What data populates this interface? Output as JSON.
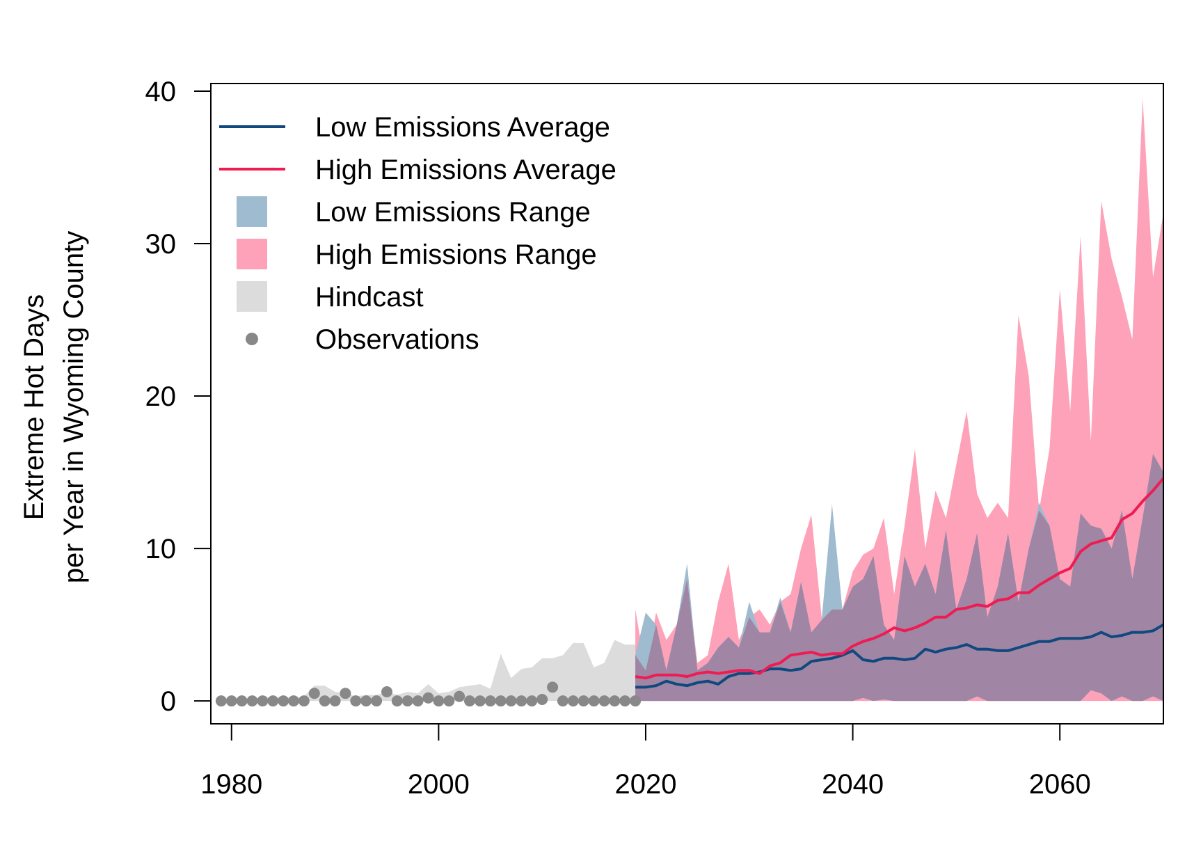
{
  "chart_data": {
    "type": "line",
    "xlabel": "",
    "ylabel_lines": [
      "Extreme Hot Days",
      "per Year in Wyoming County"
    ],
    "xlim": [
      1978,
      2070
    ],
    "ylim": [
      -1.5,
      40.5
    ],
    "xticks": [
      1980,
      2000,
      2020,
      2040,
      2060
    ],
    "yticks": [
      0,
      10,
      20,
      30,
      40
    ],
    "grid": false,
    "legend_position": "top-left",
    "colors": {
      "low_avg": "#11497f",
      "high_avg": "#ee1c53",
      "low_range": "#9fbbd0",
      "high_range": "#fda2b9",
      "overlap": "#a086a4",
      "hindcast": "#dcdcdc",
      "observations": "#888888"
    },
    "legend": [
      {
        "label": "Low Emissions Average",
        "kind": "line",
        "color_key": "low_avg"
      },
      {
        "label": "High Emissions Average",
        "kind": "line",
        "color_key": "high_avg"
      },
      {
        "label": "Low Emissions Range",
        "kind": "box",
        "color_key": "low_range"
      },
      {
        "label": "High Emissions Range",
        "kind": "box",
        "color_key": "high_range"
      },
      {
        "label": "Hindcast",
        "kind": "box",
        "color_key": "hindcast"
      },
      {
        "label": "Observations",
        "kind": "point",
        "color_key": "observations"
      }
    ],
    "observations": {
      "name": "Observations",
      "x": [
        1979,
        1980,
        1981,
        1982,
        1983,
        1984,
        1985,
        1986,
        1987,
        1988,
        1989,
        1990,
        1991,
        1992,
        1993,
        1994,
        1995,
        1996,
        1997,
        1998,
        1999,
        2000,
        2001,
        2002,
        2003,
        2004,
        2005,
        2006,
        2007,
        2008,
        2009,
        2010,
        2011,
        2012,
        2013,
        2014,
        2015,
        2016,
        2017,
        2018,
        2019
      ],
      "y": [
        0,
        0,
        0,
        0,
        0,
        0,
        0,
        0,
        0,
        0.5,
        0,
        0,
        0.5,
        0,
        0,
        0,
        0.6,
        0,
        0,
        0,
        0.2,
        0,
        0,
        0.3,
        0,
        0,
        0,
        0,
        0,
        0,
        0,
        0.1,
        0.9,
        0,
        0,
        0,
        0,
        0,
        0,
        0,
        0
      ]
    },
    "hindcast": {
      "name": "Hindcast",
      "x": [
        1979,
        1980,
        1981,
        1982,
        1983,
        1984,
        1985,
        1986,
        1987,
        1988,
        1989,
        1990,
        1991,
        1992,
        1993,
        1994,
        1995,
        1996,
        1997,
        1998,
        1999,
        2000,
        2001,
        2002,
        2003,
        2004,
        2005,
        2006,
        2007,
        2008,
        2009,
        2010,
        2011,
        2012,
        2013,
        2014,
        2015,
        2016,
        2017,
        2018,
        2019
      ],
      "upper": [
        0.1,
        0.2,
        0.1,
        0.1,
        0.3,
        0.2,
        0.3,
        0.2,
        0.3,
        1.0,
        1.0,
        0.6,
        0.5,
        0.3,
        0.4,
        0.4,
        0.6,
        0.4,
        0.6,
        0.5,
        1.1,
        0.5,
        0.6,
        0.9,
        1.0,
        1.1,
        0.8,
        3.1,
        1.5,
        2.1,
        2.2,
        2.8,
        2.8,
        3.0,
        3.8,
        3.8,
        2.2,
        2.5,
        4.0,
        3.7,
        3.7
      ]
    },
    "low_range": {
      "name": "Low Emissions Range",
      "x": [
        2019,
        2020,
        2021,
        2022,
        2023,
        2024,
        2025,
        2026,
        2027,
        2028,
        2029,
        2030,
        2031,
        2032,
        2033,
        2034,
        2035,
        2036,
        2037,
        2038,
        2039,
        2040,
        2041,
        2042,
        2043,
        2044,
        2045,
        2046,
        2047,
        2048,
        2049,
        2050,
        2051,
        2052,
        2053,
        2054,
        2055,
        2056,
        2057,
        2058,
        2059,
        2060,
        2061,
        2062,
        2063,
        2064,
        2065,
        2066,
        2067,
        2068,
        2069,
        2070
      ],
      "lower": [
        0,
        0,
        0,
        0,
        0,
        0,
        0,
        0,
        0,
        0,
        0,
        0,
        0,
        0,
        0,
        0,
        0,
        0,
        0,
        0,
        0,
        0,
        0.2,
        0,
        0.1,
        0,
        0,
        0,
        0,
        0,
        0,
        0,
        0,
        0.3,
        0,
        0,
        0,
        0,
        0,
        0,
        0,
        0,
        0,
        0,
        0.7,
        0.5,
        0,
        0.3,
        0,
        0,
        0.3,
        0
      ],
      "upper": [
        3.0,
        5.8,
        5.0,
        2.0,
        5.0,
        9.0,
        2.0,
        2.5,
        3.5,
        4.2,
        3.5,
        6.5,
        4.5,
        4.5,
        6.8,
        4.5,
        7.8,
        4.5,
        5.3,
        12.9,
        6.0,
        7.5,
        8.0,
        9.5,
        5.0,
        4.0,
        9.5,
        7.5,
        9.0,
        7.0,
        11.2,
        6.0,
        8.0,
        11.0,
        5.5,
        7.5,
        11.0,
        6.5,
        10.0,
        13.0,
        11.5,
        8.0,
        7.5,
        12.3,
        11.5,
        11.3,
        10.0,
        12.5,
        8.0,
        12.0,
        16.2,
        15.0
      ]
    },
    "high_range": {
      "name": "High Emissions Range",
      "x": [
        2019,
        2020,
        2021,
        2022,
        2023,
        2024,
        2025,
        2026,
        2027,
        2028,
        2029,
        2030,
        2031,
        2032,
        2033,
        2034,
        2035,
        2036,
        2037,
        2038,
        2039,
        2040,
        2041,
        2042,
        2043,
        2044,
        2045,
        2046,
        2047,
        2048,
        2049,
        2050,
        2051,
        2052,
        2053,
        2054,
        2055,
        2056,
        2057,
        2058,
        2059,
        2060,
        2061,
        2062,
        2063,
        2064,
        2065,
        2066,
        2067,
        2068,
        2069,
        2070
      ],
      "lower": [
        0,
        0,
        0,
        0,
        0,
        0,
        0,
        0,
        0,
        0,
        0,
        0,
        0,
        0,
        0,
        0,
        0,
        0,
        0,
        0,
        0,
        0,
        0,
        0,
        0,
        0,
        0,
        0,
        0,
        0,
        0,
        0,
        0,
        0,
        0,
        0,
        0,
        0,
        0,
        0,
        0,
        0,
        0,
        0,
        0,
        0,
        0,
        0,
        0,
        0,
        0,
        0
      ],
      "upper": [
        6.0,
        2.0,
        5.8,
        4.0,
        5.0,
        8.0,
        2.5,
        3.0,
        6.5,
        9.0,
        4.0,
        5.5,
        6.0,
        5.0,
        6.5,
        7.0,
        10.0,
        12.2,
        5.5,
        6.0,
        6.0,
        8.5,
        9.6,
        10.0,
        12.0,
        7.0,
        11.5,
        16.5,
        10.0,
        13.8,
        12.0,
        15.5,
        19.0,
        13.6,
        12.0,
        13.0,
        12.0,
        25.3,
        21.3,
        12.5,
        16.5,
        27.0,
        19.0,
        30.5,
        17.0,
        32.8,
        29.0,
        26.5,
        23.7,
        39.5,
        27.8,
        32.0
      ]
    },
    "low_avg": {
      "name": "Low Emissions Average",
      "x": [
        2019,
        2020,
        2021,
        2022,
        2023,
        2024,
        2025,
        2026,
        2027,
        2028,
        2029,
        2030,
        2031,
        2032,
        2033,
        2034,
        2035,
        2036,
        2037,
        2038,
        2039,
        2040,
        2041,
        2042,
        2043,
        2044,
        2045,
        2046,
        2047,
        2048,
        2049,
        2050,
        2051,
        2052,
        2053,
        2054,
        2055,
        2056,
        2057,
        2058,
        2059,
        2060,
        2061,
        2062,
        2063,
        2064,
        2065,
        2066,
        2067,
        2068,
        2069,
        2070
      ],
      "y": [
        0.9,
        0.9,
        1.0,
        1.3,
        1.1,
        1.0,
        1.2,
        1.3,
        1.1,
        1.6,
        1.8,
        1.8,
        1.9,
        2.1,
        2.1,
        2.0,
        2.1,
        2.6,
        2.7,
        2.8,
        3.0,
        3.3,
        2.7,
        2.6,
        2.8,
        2.8,
        2.7,
        2.8,
        3.4,
        3.2,
        3.4,
        3.5,
        3.7,
        3.4,
        3.4,
        3.3,
        3.3,
        3.5,
        3.7,
        3.9,
        3.9,
        4.1,
        4.1,
        4.1,
        4.2,
        4.5,
        4.2,
        4.3,
        4.5,
        4.5,
        4.6,
        5.0
      ]
    },
    "high_avg": {
      "name": "High Emissions Average",
      "x": [
        2019,
        2020,
        2021,
        2022,
        2023,
        2024,
        2025,
        2026,
        2027,
        2028,
        2029,
        2030,
        2031,
        2032,
        2033,
        2034,
        2035,
        2036,
        2037,
        2038,
        2039,
        2040,
        2041,
        2042,
        2043,
        2044,
        2045,
        2046,
        2047,
        2048,
        2049,
        2050,
        2051,
        2052,
        2053,
        2054,
        2055,
        2056,
        2057,
        2058,
        2059,
        2060,
        2061,
        2062,
        2063,
        2064,
        2065,
        2066,
        2067,
        2068,
        2069,
        2070
      ],
      "y": [
        1.6,
        1.5,
        1.7,
        1.7,
        1.7,
        1.6,
        1.8,
        1.9,
        1.8,
        1.9,
        2.0,
        2.0,
        1.8,
        2.3,
        2.5,
        3.0,
        3.1,
        3.2,
        3.0,
        3.1,
        3.1,
        3.6,
        3.9,
        4.1,
        4.4,
        4.8,
        4.6,
        4.8,
        5.1,
        5.5,
        5.5,
        6.0,
        6.1,
        6.3,
        6.2,
        6.6,
        6.7,
        7.1,
        7.1,
        7.6,
        8.0,
        8.4,
        8.7,
        9.8,
        10.3,
        10.5,
        10.7,
        11.9,
        12.3,
        13.1,
        13.8,
        14.6
      ]
    }
  }
}
